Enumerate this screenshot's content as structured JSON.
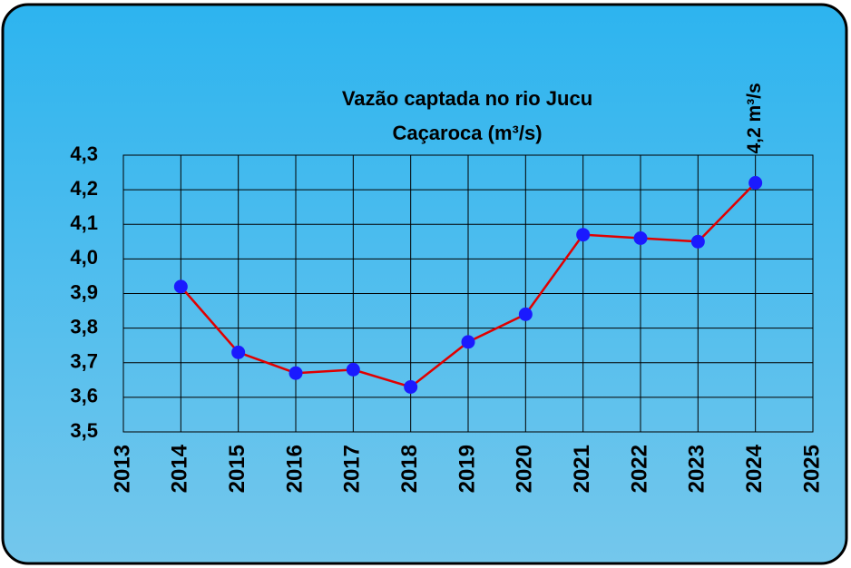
{
  "chart_data": {
    "type": "line",
    "title": [
      "Vazão captada no rio Jucu",
      "Caçaroca (m³/s)"
    ],
    "annotation": "4,2 m³/s",
    "x": [
      2014,
      2015,
      2016,
      2017,
      2018,
      2019,
      2020,
      2021,
      2022,
      2023,
      2024
    ],
    "series": [
      {
        "name": "Vazão",
        "line_color": "#e00000",
        "color": "#1a1aff",
        "values": [
          3.92,
          3.73,
          3.67,
          3.68,
          3.63,
          3.76,
          3.84,
          4.07,
          4.06,
          4.05,
          4.22
        ]
      }
    ],
    "xlim": [
      2013,
      2025
    ],
    "xticks": [
      2013,
      2014,
      2015,
      2016,
      2017,
      2018,
      2019,
      2020,
      2021,
      2022,
      2023,
      2024,
      2025
    ],
    "ylim": [
      3.5,
      4.3
    ],
    "yticks": [
      {
        "value": 3.5,
        "label": "3,5"
      },
      {
        "value": 3.6,
        "label": "3,6"
      },
      {
        "value": 3.7,
        "label": "3,7"
      },
      {
        "value": 3.8,
        "label": "3,8"
      },
      {
        "value": 3.9,
        "label": "3,9"
      },
      {
        "value": 4.0,
        "label": "4,0"
      },
      {
        "value": 4.1,
        "label": "4,1"
      },
      {
        "value": 4.2,
        "label": "4,2"
      },
      {
        "value": 4.3,
        "label": "4,3"
      }
    ],
    "grid": true
  }
}
